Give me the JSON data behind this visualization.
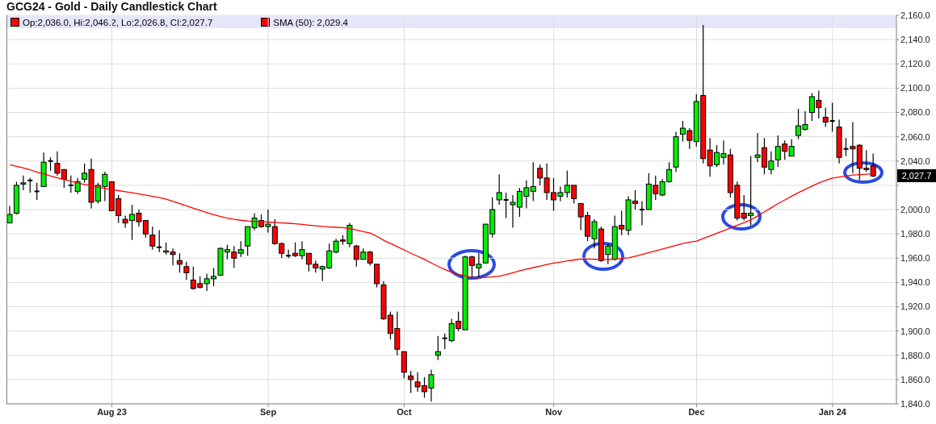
{
  "chart_data": {
    "type": "candlestick",
    "title": "GCG24 - Gold - Daily Candlestick Chart",
    "categories": [
      null,
      null,
      null,
      null,
      null,
      null,
      null,
      null,
      null,
      null,
      null,
      null,
      null,
      null,
      null,
      "Aug 23",
      null,
      null,
      null,
      null,
      null,
      null,
      null,
      null,
      null,
      null,
      null,
      null,
      null,
      null,
      null,
      null,
      null,
      null,
      null,
      null,
      null,
      null,
      "Sep",
      null,
      null,
      null,
      null,
      null,
      null,
      null,
      null,
      null,
      null,
      null,
      null,
      null,
      null,
      null,
      null,
      null,
      null,
      null,
      "Oct",
      null,
      null,
      null,
      null,
      null,
      null,
      null,
      null,
      null,
      null,
      null,
      null,
      null,
      null,
      null,
      null,
      null,
      null,
      null,
      null,
      null,
      "Nov",
      null,
      null,
      null,
      null,
      null,
      null,
      null,
      null,
      null,
      null,
      null,
      null,
      null,
      null,
      null,
      null,
      null,
      null,
      null,
      null,
      "Dec",
      null,
      null,
      null,
      null,
      null,
      null,
      null,
      null,
      null,
      null,
      null,
      null,
      null,
      null,
      null,
      null,
      null,
      null,
      null,
      "Jan 24",
      null,
      null,
      null,
      null,
      null,
      null
    ],
    "series": [
      {
        "name": "Op:2,036.0, Hi:2,046.2, Lo:2,026.8, Cl:2,027.7",
        "color": "#ff0000",
        "colors": [
          "#00ee00",
          "#00ee00",
          "#00ee00",
          "#000000",
          "#000000",
          "#00ee00",
          "#000000",
          "#ff0000",
          "#ff0000",
          "#000000",
          "#00ee00",
          "#00ee00",
          "#ff0000",
          "#00ee00",
          "#00ee00",
          "#ff0000",
          "#ff0000",
          "#ff0000",
          "#00ee00",
          "#ff0000",
          "#ff0000",
          "#ff0000",
          "#000000",
          "#00ee00",
          "#ff0000",
          "#ff0000",
          "#ff0000",
          "#ff0000",
          "#ff0000",
          "#00ee00",
          "#00ee00",
          "#00ee00",
          "#00ee00",
          "#ff0000",
          "#00ee00",
          "#00ee00",
          "#00ee00",
          "#ff0000",
          "#00ee00",
          "#ff0000",
          "#ff0000",
          "#000000",
          "#ff0000",
          "#00ee00",
          "#ff0000",
          "#ff0000",
          "#00ee00",
          "#00ee00",
          "#00ee00",
          "#ff0000",
          "#00ee00",
          "#ff0000",
          "#00ee00",
          "#ff0000",
          "#ff0000",
          "#ff0000",
          "#ff0000",
          "#ff0000",
          "#ff0000",
          "#ff0000",
          "#ff0000",
          "#ff0000",
          "#00ee00",
          "#00ee00",
          "#000000",
          "#00ee00",
          "#ff0000",
          "#00ee00",
          "#ff0000",
          "#00ee00",
          "#00ee00",
          "#00ee00",
          "#00ee00",
          "#000000",
          "#00ee00",
          "#00ee00",
          "#00ee00",
          "#00ee00",
          "#ff0000",
          "#ff0000",
          "#ff0000",
          "#00ee00",
          "#00ee00",
          "#ff0000",
          "#ff0000",
          "#ff0000",
          "#00ee00",
          "#ff0000",
          "#00ee00",
          "#00ee00",
          "#ff0000",
          "#00ee00",
          "#ff0000",
          "#000000",
          "#00ee00",
          "#ff0000",
          "#00ee00",
          "#00ee00",
          "#00ee00",
          "#00ee00",
          "#ff0000",
          "#00ee00",
          "#ff0000",
          "#ff0000",
          "#00ee00",
          "#00ee00",
          "#ff0000",
          "#ff0000",
          "#ff0000",
          "#00ee00",
          "#00ee00",
          "#ff0000",
          "#00ee00",
          "#00ee00",
          "#ff0000",
          "#00ee00",
          "#00ee00",
          "#00ee00",
          "#00ee00",
          "#ff0000",
          "#ff0000",
          "#000000",
          "#ff0000",
          "#000000",
          "#ff0000",
          "#ff0000",
          "#ff0000",
          "#ff0000"
        ],
        "ohlc": [
          [
            1989,
            2003,
            1989,
            1996
          ],
          [
            1997,
            2023,
            1996,
            2020
          ],
          [
            2021,
            2028,
            2016,
            2022
          ],
          [
            2024,
            2026,
            2014,
            2024
          ],
          [
            2015,
            2022,
            2008,
            2015
          ],
          [
            2019,
            2047,
            2019,
            2039
          ],
          [
            2040,
            2043,
            2032,
            2040
          ],
          [
            2038,
            2048,
            2028,
            2030
          ],
          [
            2033,
            2033,
            2018,
            2025
          ],
          [
            2020,
            2028,
            2014,
            2020
          ],
          [
            2015,
            2026,
            2013,
            2023
          ],
          [
            2025,
            2038,
            2022,
            2030
          ],
          [
            2033,
            2042,
            2001,
            2006
          ],
          [
            2007,
            2022,
            2005,
            2020
          ],
          [
            2019,
            2031,
            2007,
            2029
          ],
          [
            2023,
            2023,
            1999,
            1999
          ],
          [
            2009,
            2012,
            1989,
            1995
          ],
          [
            1992,
            1995,
            1985,
            1989
          ],
          [
            1991,
            2004,
            1975,
            1996
          ],
          [
            1997,
            2000,
            1986,
            1990
          ],
          [
            1991,
            1991,
            1977,
            1980
          ],
          [
            1979,
            1986,
            1967,
            1970
          ],
          [
            1969,
            1983,
            1965,
            1969
          ],
          [
            1965,
            1973,
            1963,
            1966
          ],
          [
            1965,
            1968,
            1954,
            1963
          ],
          [
            1958,
            1964,
            1948,
            1955
          ],
          [
            1953,
            1957,
            1942,
            1948
          ],
          [
            1942,
            1953,
            1934,
            1935
          ],
          [
            1939,
            1945,
            1935,
            1936
          ],
          [
            1939,
            1947,
            1933,
            1943
          ],
          [
            1943,
            1952,
            1937,
            1945
          ],
          [
            1946,
            1969,
            1946,
            1968
          ],
          [
            1965,
            1971,
            1959,
            1967
          ],
          [
            1965,
            1970,
            1952,
            1960
          ],
          [
            1964,
            1974,
            1961,
            1967
          ],
          [
            1970,
            1986,
            1962,
            1986
          ],
          [
            1985,
            1997,
            1983,
            1993
          ],
          [
            1991,
            1996,
            1985,
            1986
          ],
          [
            1986,
            2000,
            1981,
            1988
          ],
          [
            1986,
            1992,
            1971,
            1972
          ],
          [
            1972,
            1973,
            1960,
            1964
          ],
          [
            1962,
            1967,
            1960,
            1962
          ],
          [
            1964,
            1973,
            1961,
            1962
          ],
          [
            1962,
            1974,
            1959,
            1967
          ],
          [
            1964,
            1964,
            1949,
            1955
          ],
          [
            1955,
            1958,
            1948,
            1952
          ],
          [
            1951,
            1954,
            1941,
            1953
          ],
          [
            1952,
            1972,
            1951,
            1966
          ],
          [
            1965,
            1976,
            1964,
            1974
          ],
          [
            1975,
            1979,
            1971,
            1974
          ],
          [
            1972,
            1989,
            1969,
            1987
          ],
          [
            1970,
            1971,
            1953,
            1959
          ],
          [
            1959,
            1968,
            1959,
            1965
          ],
          [
            1965,
            1966,
            1954,
            1956
          ],
          [
            1955,
            1955,
            1936,
            1939
          ],
          [
            1938,
            1941,
            1909,
            1910
          ],
          [
            1913,
            1916,
            1893,
            1898
          ],
          [
            1902,
            1916,
            1880,
            1885
          ],
          [
            1883,
            1883,
            1861,
            1866
          ],
          [
            1863,
            1867,
            1849,
            1860
          ],
          [
            1858,
            1866,
            1850,
            1854
          ],
          [
            1855,
            1862,
            1845,
            1850
          ],
          [
            1853,
            1868,
            1842,
            1864
          ],
          [
            1880,
            1896,
            1876,
            1883
          ],
          [
            1894,
            1898,
            1885,
            1894
          ],
          [
            1892,
            1910,
            1891,
            1906
          ],
          [
            1908,
            1916,
            1900,
            1902
          ],
          [
            1901,
            1962,
            1901,
            1961
          ],
          [
            1961,
            1962,
            1944,
            1954
          ],
          [
            1952,
            1964,
            1944,
            1955
          ],
          [
            1956,
            1988,
            1956,
            1988
          ],
          [
            1980,
            2010,
            1977,
            2000
          ],
          [
            2008,
            2029,
            2004,
            2014
          ],
          [
            2008,
            2014,
            1993,
            2008
          ],
          [
            2004,
            2012,
            1985,
            2006
          ],
          [
            2002,
            2018,
            1994,
            2015
          ],
          [
            2011,
            2024,
            2001,
            2018
          ],
          [
            2015,
            2039,
            2007,
            2019
          ],
          [
            2034,
            2037,
            2020,
            2026
          ],
          [
            2026,
            2038,
            2008,
            2014
          ],
          [
            2014,
            2026,
            1999,
            2008
          ],
          [
            2011,
            2019,
            2007,
            2014
          ],
          [
            2014,
            2032,
            2010,
            2020
          ],
          [
            2020,
            2020,
            2005,
            2009
          ],
          [
            2005,
            2005,
            1983,
            1994
          ],
          [
            1995,
            1998,
            1974,
            1978
          ],
          [
            1976,
            1992,
            1968,
            1990
          ],
          [
            1984,
            1986,
            1957,
            1958
          ],
          [
            1963,
            1972,
            1955,
            1970
          ],
          [
            1959,
            1995,
            1958,
            1986
          ],
          [
            1987,
            1999,
            1979,
            1984
          ],
          [
            1983,
            2011,
            1979,
            2008
          ],
          [
            2007,
            2016,
            2000,
            2005
          ],
          [
            2000,
            2007,
            1987,
            2000
          ],
          [
            2000,
            2030,
            2000,
            2021
          ],
          [
            2020,
            2028,
            2008,
            2013
          ],
          [
            2012,
            2025,
            2011,
            2023
          ],
          [
            2023,
            2039,
            2022,
            2033
          ],
          [
            2035,
            2064,
            2031,
            2060
          ],
          [
            2062,
            2073,
            2056,
            2067
          ],
          [
            2065,
            2067,
            2050,
            2057
          ],
          [
            2056,
            2095,
            2052,
            2089
          ],
          [
            2094,
            2152,
            2038,
            2042
          ],
          [
            2049,
            2059,
            2027,
            2036
          ],
          [
            2037,
            2053,
            2035,
            2047
          ],
          [
            2043,
            2057,
            2037,
            2046
          ],
          [
            2045,
            2050,
            2010,
            2014
          ],
          [
            2020,
            2023,
            1991,
            1993
          ],
          [
            1997,
            2012,
            1991,
            1993
          ],
          [
            1995,
            2044,
            1987,
            1997
          ],
          [
            2043,
            2063,
            2039,
            2045
          ],
          [
            2051,
            2059,
            2029,
            2035
          ],
          [
            2033,
            2048,
            2029,
            2040
          ],
          [
            2041,
            2061,
            2035,
            2052
          ],
          [
            2054,
            2057,
            2041,
            2048
          ],
          [
            2044,
            2058,
            2044,
            2052
          ],
          [
            2061,
            2083,
            2058,
            2069
          ],
          [
            2066,
            2081,
            2065,
            2070
          ],
          [
            2080,
            2096,
            2073,
            2093
          ],
          [
            2090,
            2098,
            2075,
            2084
          ],
          [
            2076,
            2084,
            2068,
            2072
          ],
          [
            2073,
            2088,
            2064,
            2073
          ],
          [
            2068,
            2074,
            2038,
            2043
          ],
          [
            2050,
            2059,
            2044,
            2050
          ],
          [
            2052,
            2072,
            2030,
            2050
          ],
          [
            2053,
            2054,
            2024,
            2034
          ],
          [
            2034,
            2049,
            2031,
            2033
          ],
          [
            2036.0,
            2046.2,
            2026.8,
            2027.7
          ]
        ]
      },
      {
        "type": "line",
        "name": "SMA (50): 2,029.4",
        "color": "#ff0000",
        "values": [
          2037.0,
          2035.6,
          2034.3,
          2032.7,
          2030.8,
          2029.4,
          2027.7,
          2026.2,
          2024.8,
          2023.3,
          2021.8,
          2020.7,
          2019.6,
          2018.5,
          2017.4,
          2016.5,
          2015.6,
          2014.7,
          2013.8,
          2012.9,
          2011.9,
          2010.9,
          2009.9,
          2008.5,
          2006.7,
          2004.9,
          2003.0,
          2001.1,
          1999.3,
          1997.5,
          1995.7,
          1994.2,
          1993.0,
          1992.0,
          1991.2,
          1990.6,
          1990.2,
          1989.9,
          1989.7,
          1989.4,
          1989.0,
          1988.7,
          1988.3,
          1987.8,
          1987.2,
          1986.7,
          1986.1,
          1985.7,
          1985.4,
          1985.1,
          1984.4,
          1983.2,
          1981.9,
          1980.7,
          1977.9,
          1974.7,
          1972.0,
          1969.4,
          1966.8,
          1964.0,
          1961.5,
          1958.9,
          1956.0,
          1953.2,
          1950.6,
          1948.3,
          1946.6,
          null,
          1944.0,
          1943.9,
          1944.2,
          1944.6,
          1945.2,
          1946.5,
          1948.0,
          1949.6,
          1951.0,
          1952.2,
          1953.5,
          1954.8,
          1956.0,
          1956.8,
          1957.7,
          1958.5,
          1959.2,
          1959.3,
          1959.1,
          1958.9,
          1958.7,
          1959.2,
          1959.7,
          1960.2,
          1961.6,
          1963.1,
          1964.6,
          1966.1,
          1967.6,
          1969.1,
          1970.6,
          1972.1,
          1973.2,
          1974.0,
          1976.2,
          1978.3,
          1980.5,
          1982.6,
          1984.8,
          1987.1,
          1989.3,
          1991.5,
          1994.8,
          1998.2,
          2001.6,
          2005.0,
          2008.0,
          2011.0,
          2014.0,
          2016.7,
          2019.3,
          2022.0,
          2024.0,
          2026.0,
          2026.8,
          2027.7,
          2028.5,
          2028.8,
          2029.1,
          2029.4
        ]
      }
    ],
    "ylim": [
      1840,
      2160
    ],
    "yticks": [
      {
        "value": 1840,
        "label": "1,840.0"
      },
      {
        "value": 1860,
        "label": "1,860.0"
      },
      {
        "value": 1880,
        "label": "1,880.0"
      },
      {
        "value": 1900,
        "label": "1,900.0"
      },
      {
        "value": 1920,
        "label": "1,920.0"
      },
      {
        "value": 1940,
        "label": "1,940.0"
      },
      {
        "value": 1960,
        "label": "1,960.0"
      },
      {
        "value": 1980,
        "label": "1,980.0"
      },
      {
        "value": 2000,
        "label": "2,000.0"
      },
      {
        "value": 2020,
        "label": null
      },
      {
        "value": 2040,
        "label": "2,040.0"
      },
      {
        "value": 2060,
        "label": "2,060.0"
      },
      {
        "value": 2080,
        "label": "2,080.0"
      },
      {
        "value": 2100,
        "label": "2,100.0"
      },
      {
        "value": 2120,
        "label": "2,120.0"
      },
      {
        "value": 2140,
        "label": "2,140.0"
      },
      {
        "value": 2160,
        "label": "2,160.0"
      }
    ],
    "annotations": [
      "2,027.7"
    ],
    "grid": true,
    "legend": "top left",
    "marker": "none",
    "line_style": "solid"
  }
}
